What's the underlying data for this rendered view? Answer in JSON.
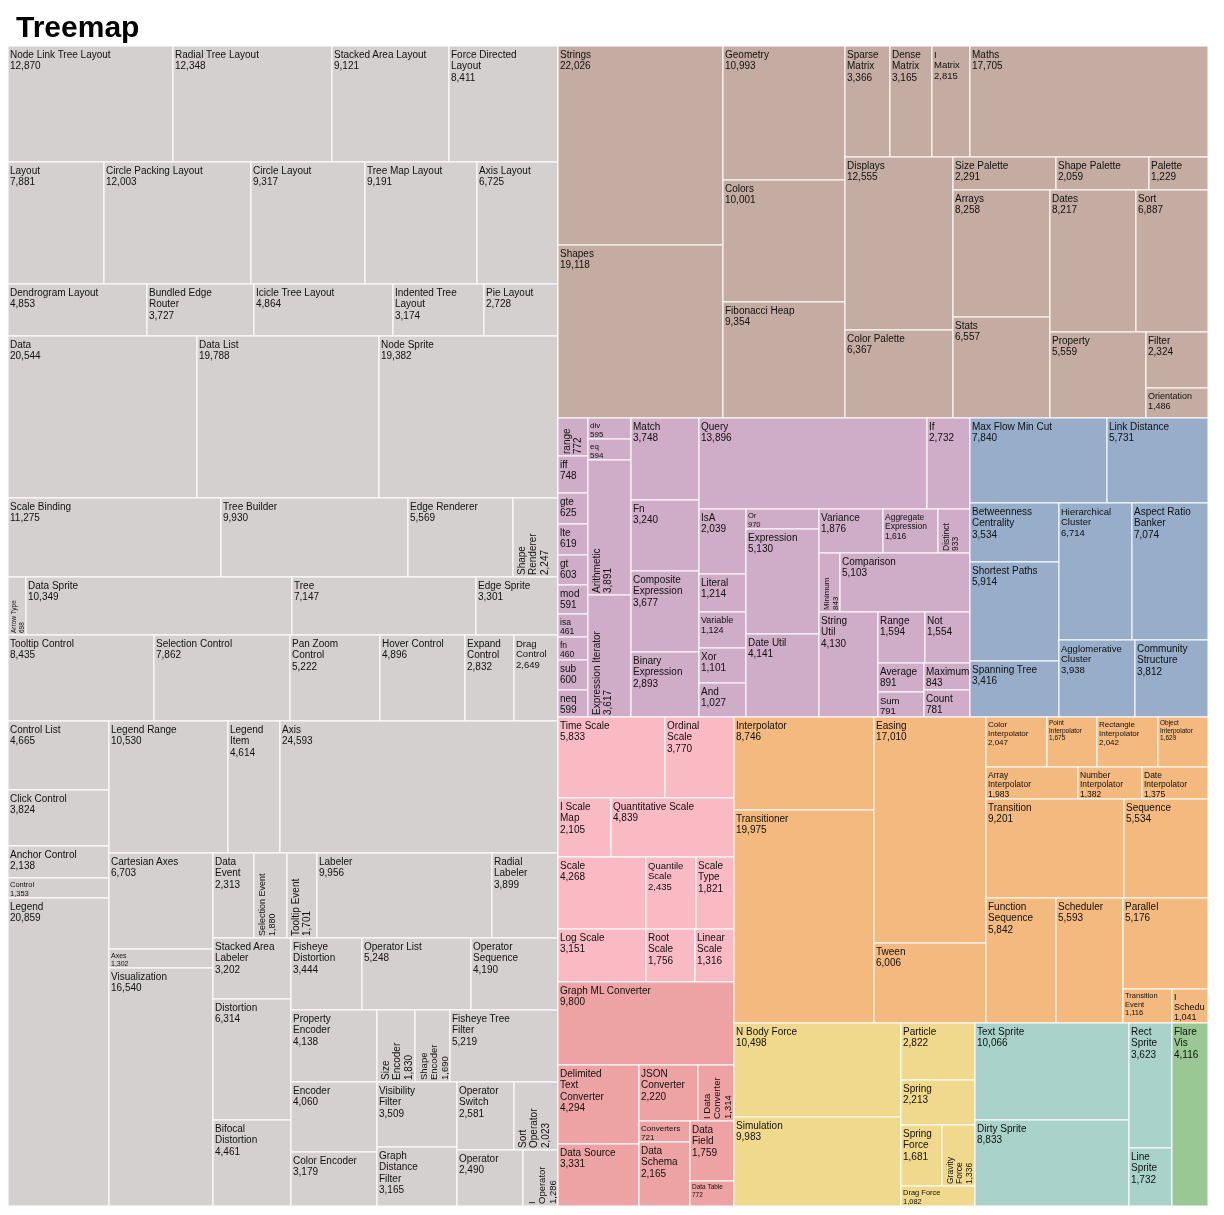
{
  "chart_data": {
    "type": "other",
    "title": "Treemap",
    "categories": [
      "Node Link Tree Layout",
      "Radial Tree Layout",
      "Stacked Area Layout",
      "Force Directed Layout",
      "Layout",
      "Circle Packing Layout",
      "Circle Layout",
      "Tree Map Layout",
      "Axis Layout",
      "Dendrogram Layout",
      "Bundled Edge Router",
      "Icicle Tree Layout",
      "Indented Tree Layout",
      "Pie Layout",
      "Data",
      "Data List",
      "Node Sprite",
      "Scale Binding",
      "Tree Builder",
      "Edge Renderer",
      "Shape Renderer",
      "Arrow Type",
      "Data Sprite",
      "Tree",
      "Edge Sprite",
      "Tooltip Control",
      "Selection Control",
      "Pan Zoom Control",
      "Hover Control",
      "Expand Control",
      "Drag Control",
      "Control List",
      "Click Control",
      "Anchor Control",
      "Control",
      "Legend",
      "Legend Range",
      "Legend Item",
      "Axis",
      "Cartesian Axes",
      "Axes",
      "Visualization",
      "Data Event",
      "Selection Event",
      "Tooltip Event",
      "Labeler",
      "Radial Labeler",
      "Stacked Area Labeler",
      "Distortion",
      "Bifocal Distortion",
      "Fisheye Distortion",
      "Operator List",
      "Operator Sequence",
      "Property Encoder",
      "Encoder",
      "Color Encoder",
      "Size Encoder",
      "Shape Encoder",
      "Fisheye Tree Filter",
      "Visibility Filter",
      "Graph Distance Filter",
      "Operator Switch",
      "Sort Operator",
      "Operator",
      "I Operator",
      "Strings",
      "Shapes",
      "Geometry",
      "Colors",
      "Fibonacci Heap",
      "Sparse Matrix",
      "Dense Matrix",
      "I Matrix",
      "Maths",
      "Displays",
      "Color Palette",
      "Size Palette",
      "Shape Palette",
      "Palette",
      "Arrays",
      "Stats",
      "Dates",
      "Sort",
      "Property",
      "Filter",
      "Orientation",
      "range",
      "iff",
      "gte",
      "lte",
      "gt",
      "mod",
      "isa",
      "fn",
      "sub",
      "neq",
      "div",
      "eq",
      "Arithmetic",
      "Expression Iterator",
      "Match",
      "Fn",
      "Composite Expression",
      "Binary Expression",
      "Query",
      "If",
      "IsA",
      "Literal",
      "Variable",
      "Xor",
      "And",
      "Or",
      "Expression",
      "Date Util",
      "Variance",
      "Aggregate Expression",
      "Distinct",
      "Minimum",
      "Comparison",
      "String Util",
      "Range",
      "Not",
      "Average",
      "Sum",
      "Maximum",
      "Count",
      "Max Flow Min Cut",
      "Link Distance",
      "Betweenness Centrality",
      "Shortest Paths",
      "Spanning Tree",
      "Hierarchical Cluster",
      "Aspect Ratio Banker",
      "Agglomerative Cluster",
      "Community Structure",
      "Time Scale",
      "Ordinal Scale",
      "I Scale Map",
      "Quantitative Scale",
      "Scale",
      "Log Scale",
      "Quantile Scale",
      "Scale Type",
      "Root Scale",
      "Linear Scale",
      "Graph ML Converter",
      "Delimited Text Converter",
      "Data Source",
      "JSON Converter",
      "I Data Converter",
      "Converters",
      "Data Schema",
      "Data Field",
      "Data Table",
      "Interpolator",
      "Transitioner",
      "Easing",
      "Tween",
      "Color Interpolator",
      "Point Interpolator",
      "Rectangle Interpolator",
      "Object Interpolator",
      "Array Interpolator",
      "Number Interpolator",
      "Date Interpolator",
      "Transition",
      "Sequence",
      "Function Sequence",
      "Scheduler",
      "Parallel",
      "Transition Event",
      "I Schedu",
      "N Body Force",
      "Simulation",
      "Particle",
      "Spring",
      "Spring Force",
      "Gravity Force",
      "Drag Force",
      "Text Sprite",
      "Dirty Sprite",
      "Rect Sprite",
      "Line Sprite",
      "Flare Vis"
    ],
    "values": [
      12870,
      12348,
      9121,
      8411,
      7881,
      12003,
      9317,
      9191,
      6725,
      4853,
      3727,
      4864,
      3174,
      2728,
      20544,
      19788,
      19382,
      11275,
      9930,
      5569,
      2247,
      698,
      10349,
      7147,
      3301,
      8435,
      7862,
      5222,
      4896,
      2832,
      2649,
      4665,
      3824,
      2138,
      1353,
      20859,
      10530,
      4614,
      24593,
      6703,
      1302,
      16540,
      2313,
      1880,
      1701,
      9956,
      3899,
      3202,
      6314,
      4461,
      3444,
      5248,
      4190,
      4138,
      4060,
      3179,
      1830,
      1690,
      5219,
      3509,
      3165,
      2581,
      2023,
      2490,
      1286,
      22026,
      19118,
      10993,
      10001,
      9354,
      3366,
      3165,
      2815,
      17705,
      12555,
      6367,
      2291,
      2059,
      1229,
      8258,
      6557,
      8217,
      6887,
      5559,
      2324,
      1486,
      772,
      748,
      625,
      619,
      603,
      591,
      461,
      460,
      600,
      599,
      595,
      594,
      3891,
      3617,
      3748,
      3240,
      3677,
      2893,
      13896,
      2732,
      2039,
      1214,
      1124,
      1101,
      1027,
      970,
      5130,
      4141,
      1876,
      1616,
      933,
      843,
      5103,
      4130,
      1594,
      1554,
      891,
      791,
      843,
      781,
      7840,
      5731,
      3534,
      5914,
      3416,
      6714,
      7074,
      3938,
      3812,
      5833,
      3770,
      2105,
      4839,
      4268,
      3151,
      2435,
      1821,
      1756,
      1316,
      9800,
      4294,
      3331,
      2220,
      1314,
      721,
      2165,
      1759,
      772,
      8746,
      19975,
      17010,
      6006,
      2047,
      1675,
      2042,
      1629,
      1983,
      1382,
      1375,
      9201,
      5534,
      5842,
      5593,
      5176,
      1116,
      1041,
      10498,
      9983,
      2822,
      2213,
      1681,
      1336,
      1082,
      10066,
      8833,
      3623,
      1732,
      4116
    ],
    "value_labels": [
      "12,870",
      "12,348",
      "9,121",
      "8,411",
      "7,881",
      "12,003",
      "9,317",
      "9,191",
      "6,725",
      "4,853",
      "3,727",
      "4,864",
      "3,174",
      "2,728",
      "20,544",
      "19,788",
      "19,382",
      "11,275",
      "9,930",
      "5,569",
      "2,247",
      "698",
      "10,349",
      "7,147",
      "3,301",
      "8,435",
      "7,862",
      "5,222",
      "4,896",
      "2,832",
      "2,649",
      "4,665",
      "3,824",
      "2,138",
      "1,353",
      "20,859",
      "10,530",
      "4,614",
      "24,593",
      "6,703",
      "1,302",
      "16,540",
      "2,313",
      "1,880",
      "1,701",
      "9,956",
      "3,899",
      "3,202",
      "6,314",
      "4,461",
      "3,444",
      "5,248",
      "4,190",
      "4,138",
      "4,060",
      "3,179",
      "1,830",
      "1,690",
      "5,219",
      "3,509",
      "3,165",
      "2,581",
      "2,023",
      "2,490",
      "1,286",
      "22,026",
      "19,118",
      "10,993",
      "10,001",
      "9,354",
      "3,366",
      "3,165",
      "2,815",
      "17,705",
      "12,555",
      "6,367",
      "2,291",
      "2,059",
      "1,229",
      "8,258",
      "6,557",
      "8,217",
      "6,887",
      "5,559",
      "2,324",
      "1,486",
      "772",
      "748",
      "625",
      "619",
      "603",
      "591",
      "461",
      "460",
      "600",
      "599",
      "595",
      "594",
      "3,891",
      "3,617",
      "3,748",
      "3,240",
      "3,677",
      "2,893",
      "13,896",
      "2,732",
      "2,039",
      "1,214",
      "1,124",
      "1,101",
      "1,027",
      "970",
      "5,130",
      "4,141",
      "1,876",
      "1,616",
      "933",
      "843",
      "5,103",
      "4,130",
      "1,594",
      "1,554",
      "891",
      "791",
      "843",
      "781",
      "7,840",
      "5,731",
      "3,534",
      "5,914",
      "3,416",
      "6,714",
      "7,074",
      "3,938",
      "3,812",
      "5,833",
      "3,770",
      "2,105",
      "4,839",
      "4,268",
      "3,151",
      "2,435",
      "1,821",
      "1,756",
      "1,316",
      "9,800",
      "4,294",
      "3,331",
      "2,220",
      "1,314",
      "721",
      "2,165",
      "1,759",
      "772",
      "8,746",
      "19,975",
      "17,010",
      "6,006",
      "2,047",
      "1,675",
      "2,042",
      "1,629",
      "1,983",
      "1,382",
      "1,375",
      "9,201",
      "5,534",
      "5,842",
      "5,593",
      "5,176",
      "1,116",
      "1,041",
      "10,498",
      "9,983",
      "2,822",
      "2,213",
      "1,681",
      "1,336",
      "1,082",
      "10,066",
      "8,833",
      "3,623",
      "1,732",
      "4,116"
    ],
    "colors": [
      "#d5d0d0",
      "#d5d0d0",
      "#d5d0d0",
      "#d5d0d0",
      "#d5d0d0",
      "#d5d0d0",
      "#d5d0d0",
      "#d5d0d0",
      "#d5d0d0",
      "#d5d0d0",
      "#d5d0d0",
      "#d5d0d0",
      "#d5d0d0",
      "#d5d0d0",
      "#d5d0d0",
      "#d5d0d0",
      "#d5d0d0",
      "#d5d0d0",
      "#d5d0d0",
      "#d5d0d0",
      "#d5d0d0",
      "#d5d0d0",
      "#d5d0d0",
      "#d5d0d0",
      "#d5d0d0",
      "#d5d0d0",
      "#d5d0d0",
      "#d5d0d0",
      "#d5d0d0",
      "#d5d0d0",
      "#d5d0d0",
      "#d5d0d0",
      "#d5d0d0",
      "#d5d0d0",
      "#d5d0d0",
      "#d5d0d0",
      "#d5d0d0",
      "#d5d0d0",
      "#d5d0d0",
      "#d5d0d0",
      "#d5d0d0",
      "#d5d0d0",
      "#d5d0d0",
      "#d5d0d0",
      "#d5d0d0",
      "#d5d0d0",
      "#d5d0d0",
      "#d5d0d0",
      "#d5d0d0",
      "#d5d0d0",
      "#d5d0d0",
      "#d5d0d0",
      "#d5d0d0",
      "#d5d0d0",
      "#d5d0d0",
      "#d5d0d0",
      "#d5d0d0",
      "#d5d0d0",
      "#d5d0d0",
      "#d5d0d0",
      "#d5d0d0",
      "#d5d0d0",
      "#d5d0d0",
      "#d5d0d0",
      "#d5d0d0",
      "#c4aca2",
      "#c4aca2",
      "#c4aca2",
      "#c4aca2",
      "#c4aca2",
      "#c4aca2",
      "#c4aca2",
      "#c4aca2",
      "#c4aca2",
      "#c4aca2",
      "#c4aca2",
      "#c4aca2",
      "#c4aca2",
      "#c4aca2",
      "#c4aca2",
      "#c4aca2",
      "#c4aca2",
      "#c4aca2",
      "#c4aca2",
      "#c4aca2",
      "#c4aca2",
      "#cfacc7",
      "#cfacc7",
      "#cfacc7",
      "#cfacc7",
      "#cfacc7",
      "#cfacc7",
      "#cfacc7",
      "#cfacc7",
      "#cfacc7",
      "#cfacc7",
      "#cfacc7",
      "#cfacc7",
      "#cfacc7",
      "#cfacc7",
      "#cfacc7",
      "#cfacc7",
      "#cfacc7",
      "#cfacc7",
      "#cfacc7",
      "#cfacc7",
      "#cfacc7",
      "#cfacc7",
      "#cfacc7",
      "#cfacc7",
      "#cfacc7",
      "#cfacc7",
      "#cfacc7",
      "#cfacc7",
      "#cfacc7",
      "#cfacc7",
      "#cfacc7",
      "#cfacc7",
      "#cfacc7",
      "#cfacc7",
      "#cfacc7",
      "#cfacc7",
      "#cfacc7",
      "#cfacc7",
      "#cfacc7",
      "#cfacc7",
      "#97adca",
      "#97adca",
      "#97adca",
      "#97adca",
      "#97adca",
      "#97adca",
      "#97adca",
      "#97adca",
      "#97adca",
      "#f9bac3",
      "#f9bac3",
      "#f9bac3",
      "#f9bac3",
      "#f9bac3",
      "#f9bac3",
      "#f9bac3",
      "#f9bac3",
      "#f9bac3",
      "#f9bac3",
      "#eda3a3",
      "#eda3a3",
      "#eda3a3",
      "#eda3a3",
      "#eda3a3",
      "#eda3a3",
      "#eda3a3",
      "#eda3a3",
      "#eda3a3",
      "#f4b97e",
      "#f4b97e",
      "#f4b97e",
      "#f4b97e",
      "#f4b97e",
      "#f4b97e",
      "#f4b97e",
      "#f4b97e",
      "#f4b97e",
      "#f4b97e",
      "#f4b97e",
      "#f4b97e",
      "#f4b97e",
      "#f4b97e",
      "#f4b97e",
      "#f4b97e",
      "#f4b97e",
      "#f4b97e",
      "#f0d98c",
      "#f0d98c",
      "#f0d98c",
      "#f0d98c",
      "#f0d98c",
      "#f0d98c",
      "#f0d98c",
      "#a9d3ca",
      "#a9d3ca",
      "#a9d3ca",
      "#a9d3ca",
      "#9ac894"
    ]
  }
}
